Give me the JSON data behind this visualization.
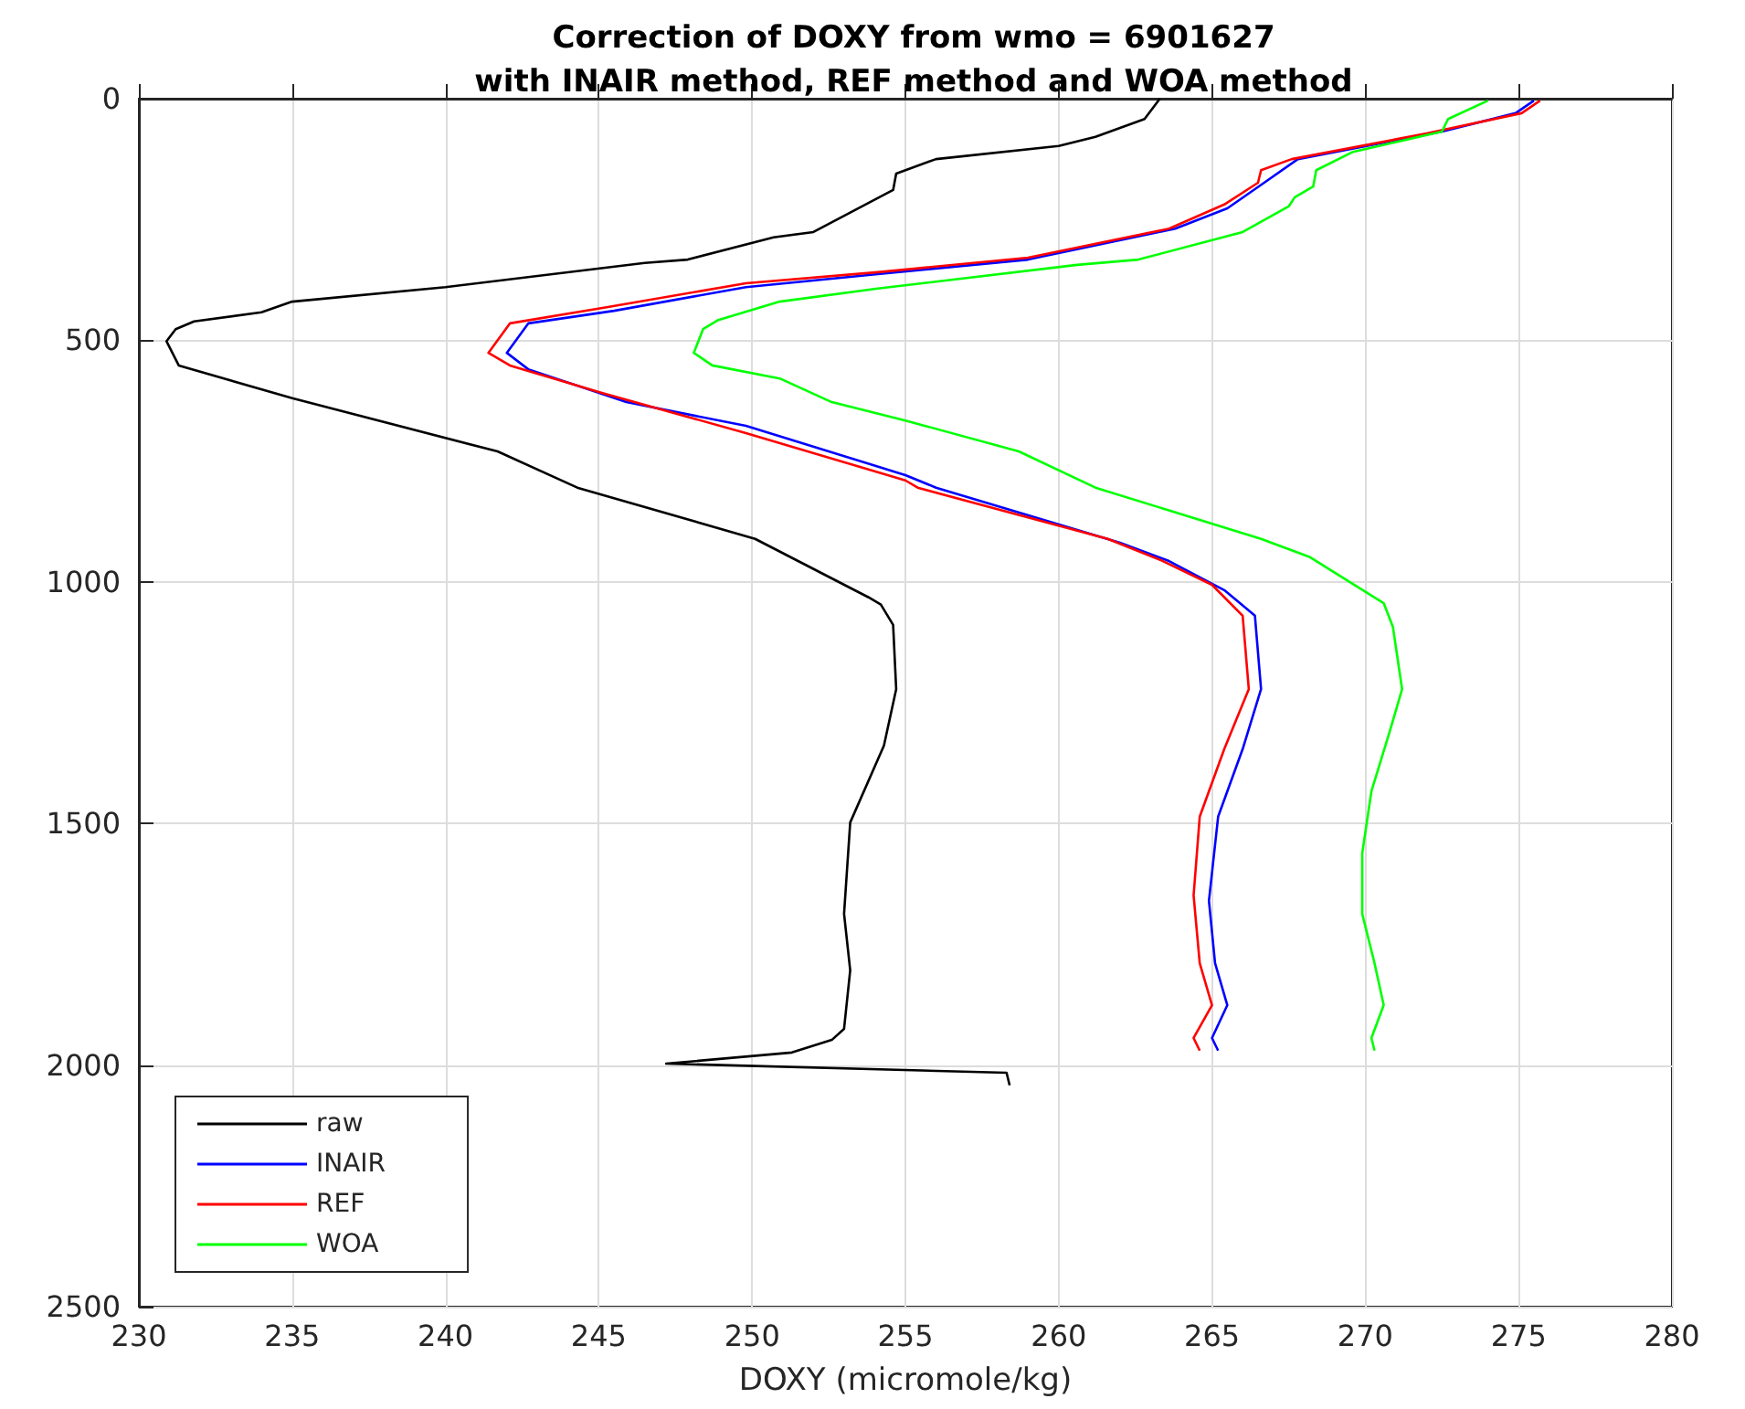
{
  "chart_data": {
    "type": "line",
    "title": "Correction of DOXY from wmo = 6901627\nwith INAIR method, REF method and WOA method",
    "xlabel": "DOXY (micromole/kg)",
    "xlim": [
      230,
      280
    ],
    "xticks": [
      230,
      235,
      240,
      245,
      250,
      255,
      260,
      265,
      270,
      275,
      280
    ],
    "ylim": [
      2500,
      0
    ],
    "yticks": [
      0,
      500,
      1000,
      1500,
      2000,
      2500
    ],
    "grid": true,
    "legend": "bottom left",
    "marker": "none",
    "line_style": "solid",
    "series": [
      {
        "name": "raw",
        "color": "#000000",
        "x": [
          263.3,
          262.8,
          261.2,
          260.0,
          256.0,
          254.7,
          254.6,
          252.0,
          250.7,
          247.9,
          246.5,
          240.0,
          235.0,
          234.0,
          231.8,
          231.2,
          230.9,
          231.3,
          235.0,
          241.7,
          244.3,
          250.1,
          253.8,
          254.2,
          254.6,
          254.7,
          254.3,
          253.2,
          253.0,
          253.2,
          253.0,
          252.6,
          251.3,
          247.2,
          258.3,
          258.4
        ],
        "values": [
          0,
          42,
          79,
          98,
          125,
          155,
          189,
          276,
          287,
          333,
          340,
          390,
          420,
          442,
          461,
          477,
          502,
          552,
          620,
          730,
          805,
          911,
          1032,
          1047,
          1089,
          1222,
          1339,
          1498,
          1687,
          1804,
          1925,
          1948,
          1974,
          1997,
          2016,
          2042
        ]
      },
      {
        "name": "INAIR",
        "color": "#0000ff",
        "x": [
          275.5,
          274.9,
          272.5,
          267.8,
          266.7,
          265.5,
          263.8,
          259.0,
          254.1,
          249.8,
          245.5,
          242.7,
          242.0,
          242.7,
          245.9,
          249.8,
          255.0,
          256.0,
          262.0,
          263.6,
          265.4,
          266.4,
          266.6,
          266.0,
          265.2,
          264.9,
          265.1,
          265.5,
          265.0,
          265.2
        ],
        "values": [
          4,
          30,
          68,
          125,
          174,
          227,
          269,
          333,
          363,
          390,
          439,
          465,
          526,
          560,
          628,
          677,
          779,
          805,
          919,
          957,
          1017,
          1070,
          1222,
          1346,
          1486,
          1660,
          1789,
          1876,
          1944,
          1970
        ]
      },
      {
        "name": "REF",
        "color": "#ff0000",
        "x": [
          275.7,
          275.1,
          272.0,
          267.6,
          266.6,
          266.5,
          265.4,
          263.6,
          259.0,
          254.1,
          249.8,
          245.3,
          242.1,
          241.4,
          242.1,
          245.1,
          249.8,
          255.0,
          255.4,
          261.6,
          263.4,
          265.0,
          266.0,
          266.2,
          265.4,
          264.6,
          264.4,
          264.6,
          265.0,
          264.4,
          264.6
        ],
        "values": [
          4,
          30,
          72,
          125,
          148,
          174,
          219,
          269,
          329,
          359,
          382,
          431,
          465,
          526,
          552,
          609,
          692,
          790,
          805,
          911,
          957,
          1006,
          1070,
          1222,
          1346,
          1486,
          1649,
          1789,
          1876,
          1944,
          1970
        ]
      },
      {
        "name": "WOA",
        "color": "#00ff00",
        "x": [
          274.0,
          272.7,
          272.5,
          269.6,
          268.4,
          268.3,
          267.7,
          267.5,
          266.0,
          262.6,
          260.6,
          254.1,
          250.9,
          248.9,
          248.4,
          248.1,
          248.7,
          250.9,
          252.6,
          255.0,
          258.7,
          261.2,
          266.6,
          268.2,
          270.6,
          270.9,
          271.2,
          270.8,
          270.2,
          269.9,
          269.9,
          270.3,
          270.6,
          270.2,
          270.3
        ],
        "values": [
          4,
          42,
          68,
          110,
          148,
          182,
          204,
          223,
          276,
          333,
          344,
          393,
          420,
          458,
          477,
          526,
          552,
          579,
          628,
          666,
          730,
          805,
          911,
          949,
          1044,
          1093,
          1222,
          1309,
          1433,
          1562,
          1687,
          1789,
          1876,
          1944,
          1970
        ]
      }
    ]
  }
}
